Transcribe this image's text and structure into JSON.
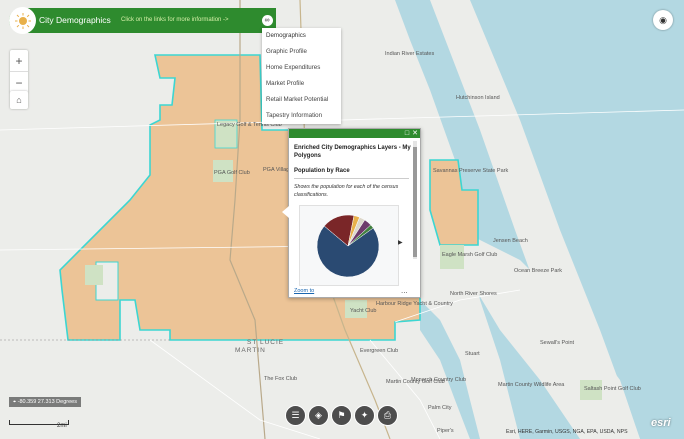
{
  "header": {
    "title": "City Demographics",
    "subtitle": "Click on the links for more information ->"
  },
  "menu": {
    "items": [
      "Demographics",
      "Graphic Profile",
      "Home Expenditures",
      "Market Profile",
      "Retail Market Potential",
      "Tapestry Information"
    ]
  },
  "popup": {
    "title": "Enriched City Demographics Layers - My Polygons",
    "heading": "Population by Race",
    "description": "Shows the population for each of the census classifications.",
    "zoom_label": "Zoom to",
    "more_label": "...",
    "pie_slices": [
      {
        "value": 0.71,
        "color": "#2a4a72"
      },
      {
        "value": 0.17,
        "color": "#7a2628"
      },
      {
        "value": 0.03,
        "color": "#e8b04a"
      },
      {
        "value": 0.03,
        "color": "#ddd8cc"
      },
      {
        "value": 0.04,
        "color": "#6e3a6b"
      },
      {
        "value": 0.02,
        "color": "#3f7f3f"
      }
    ]
  },
  "map_labels": [
    "Indian River Estates",
    "Hutchinson Island",
    "Legacy Golf & Tennis Club",
    "PGA Golf Club",
    "PGA Village",
    "Savannas Preserve State Park",
    "Jensen Beach",
    "Eagle Marsh Golf Club",
    "Ocean Breeze Park",
    "North River Shores",
    "Stuart",
    "Sewall's Point",
    "Harbour Ridge Yacht & Country",
    "Evergreen Club",
    "Martin County Golf Club",
    "Monarch Country Club",
    "Palm City",
    "Piper's",
    "Saltash Point Golf Club",
    "Yacht Club",
    "The Fox Club",
    "Martin County Wildlife Area",
    "ST LUCIE",
    "MARTIN"
  ],
  "status": {
    "coordinates": "-80.359 27.313 Degrees",
    "scale": "2mi"
  },
  "attribution": "Esri, HERE, Garmin, USGS, NGA, EPA, USDA, NPS",
  "brand": "esri",
  "colors": {
    "header_green": "#2e8b2e",
    "polygon_fill": "#ecc497",
    "polygon_outline": "#3cd6d2",
    "water": "#b3d8e2",
    "land": "#ecedea"
  }
}
